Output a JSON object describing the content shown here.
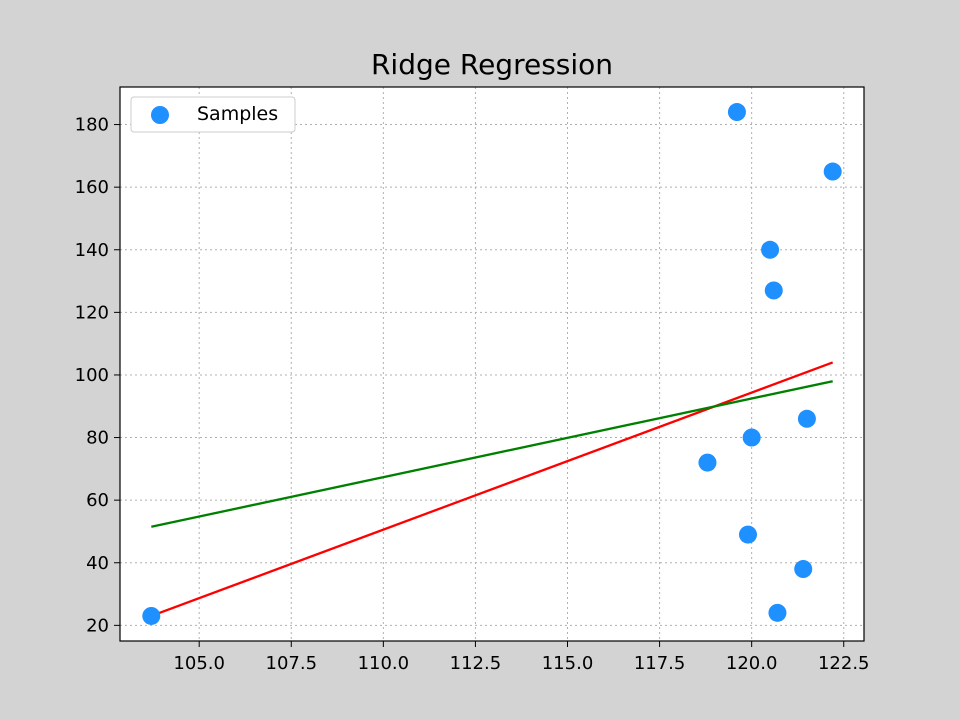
{
  "chart_data": {
    "type": "scatter",
    "title": "Ridge Regression",
    "xlabel": "",
    "ylabel": "",
    "xlim": [
      102.85,
      123.05
    ],
    "ylim": [
      15,
      192
    ],
    "xticks": [
      105.0,
      107.5,
      110.0,
      112.5,
      115.0,
      117.5,
      120.0,
      122.5
    ],
    "xtick_labels": [
      "105.0",
      "107.5",
      "110.0",
      "112.5",
      "115.0",
      "117.5",
      "120.0",
      "122.5"
    ],
    "yticks": [
      20,
      40,
      60,
      80,
      100,
      120,
      140,
      160,
      180
    ],
    "ytick_labels": [
      "20",
      "40",
      "60",
      "80",
      "100",
      "120",
      "140",
      "160",
      "180"
    ],
    "grid": true,
    "legend": {
      "position": "top-left",
      "entries": [
        "Samples"
      ]
    },
    "points": {
      "name": "Samples",
      "color": "#1e90ff",
      "x": [
        103.7,
        118.8,
        119.6,
        119.9,
        120.0,
        120.5,
        120.6,
        120.7,
        121.4,
        121.5,
        122.2
      ],
      "y": [
        23,
        72,
        184,
        49,
        80,
        140,
        127,
        24,
        38,
        86,
        165
      ]
    },
    "lines": [
      {
        "color": "#ff0000",
        "x": [
          103.7,
          122.2
        ],
        "y": [
          23,
          104
        ]
      },
      {
        "color": "#008000",
        "x": [
          103.7,
          122.2
        ],
        "y": [
          51.5,
          98
        ]
      }
    ]
  }
}
